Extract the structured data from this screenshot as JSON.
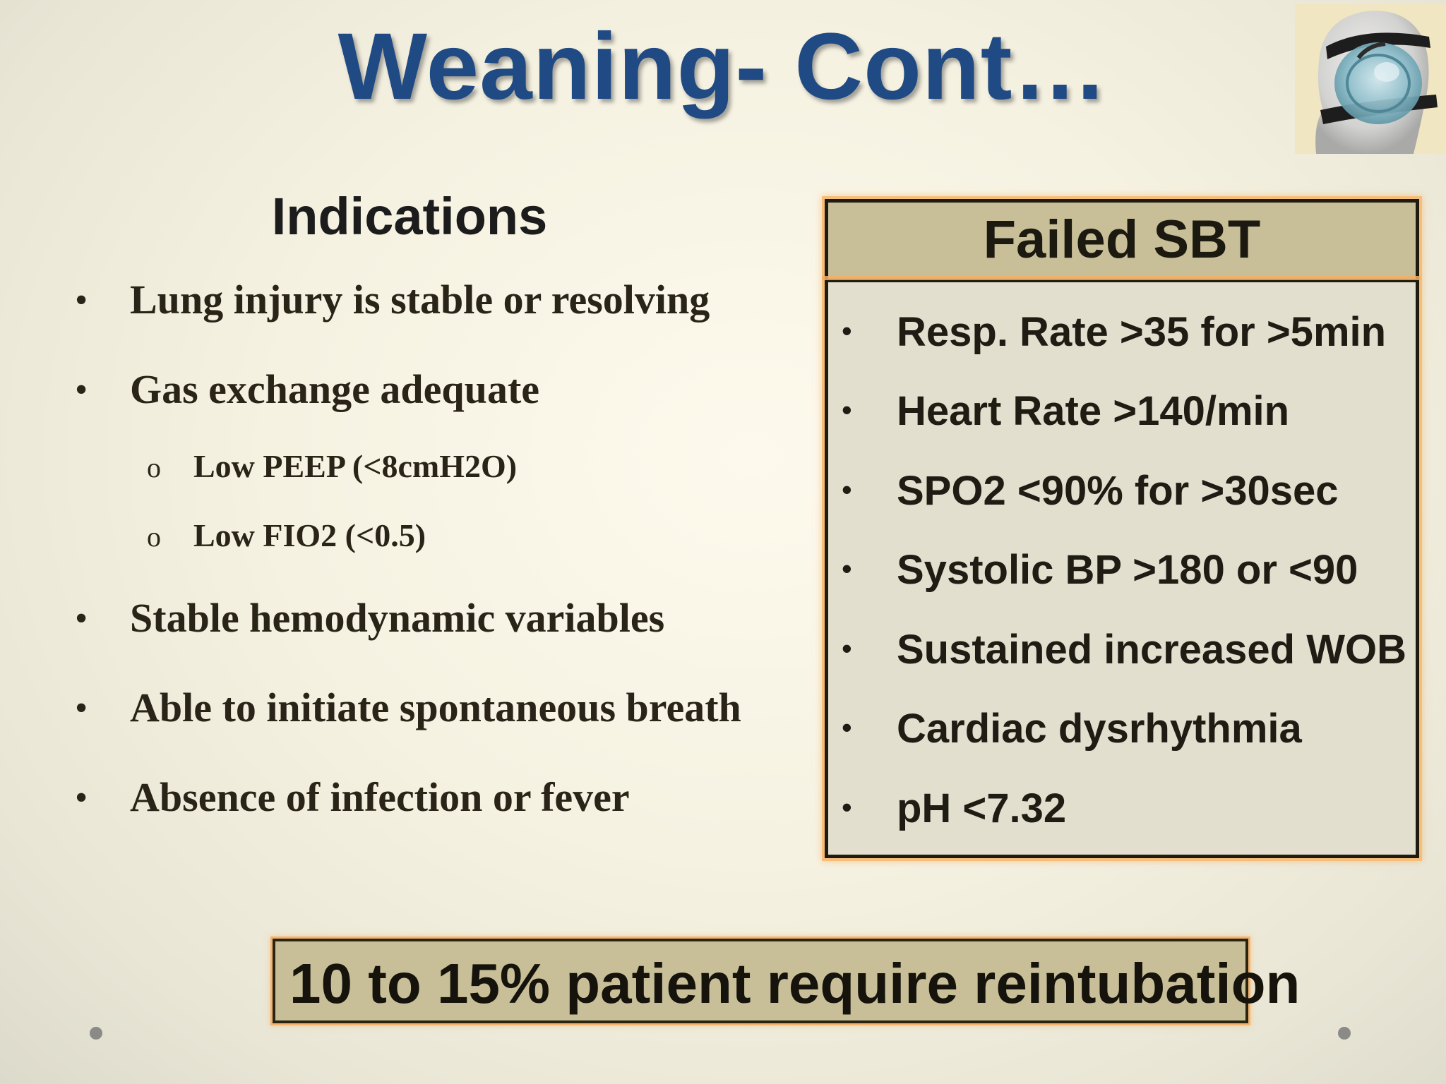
{
  "slide": {
    "title": "Weaning- Cont…",
    "image_icon": "cpap-mask-mannequin-icon"
  },
  "indications": {
    "heading": "Indications",
    "bullet_glyph": "•",
    "sub_bullet_glyph": "o",
    "items": [
      {
        "text": "Lung injury is stable or resolving",
        "level": "main"
      },
      {
        "text": "Gas exchange adequate",
        "level": "main"
      },
      {
        "text": "Low PEEP (<8cmH2O)",
        "level": "sub"
      },
      {
        "text": "Low FIO2 (<0.5)",
        "level": "sub"
      },
      {
        "text": "Stable hemodynamic variables",
        "level": "main"
      },
      {
        "text": "Able to initiate spontaneous breath",
        "level": "main"
      },
      {
        "text": "Absence of infection or fever",
        "level": "main"
      }
    ]
  },
  "failed_sbt": {
    "title": "Failed SBT",
    "bullet_glyph": "•",
    "items": [
      "Resp. Rate >35 for >5min",
      "Heart Rate >140/min",
      "SPO2 <90% for >30sec",
      "Systolic BP >180 or <90",
      "Sustained increased WOB",
      "Cardiac dysrhythmia",
      "pH <7.32"
    ]
  },
  "footer": {
    "note": "10 to 15% patient require reintubation"
  },
  "colors": {
    "title": "#1f4a83",
    "box_fill": "#c8bf98",
    "box_glow": "#f6be78",
    "text_dark": "#1f1c14"
  }
}
